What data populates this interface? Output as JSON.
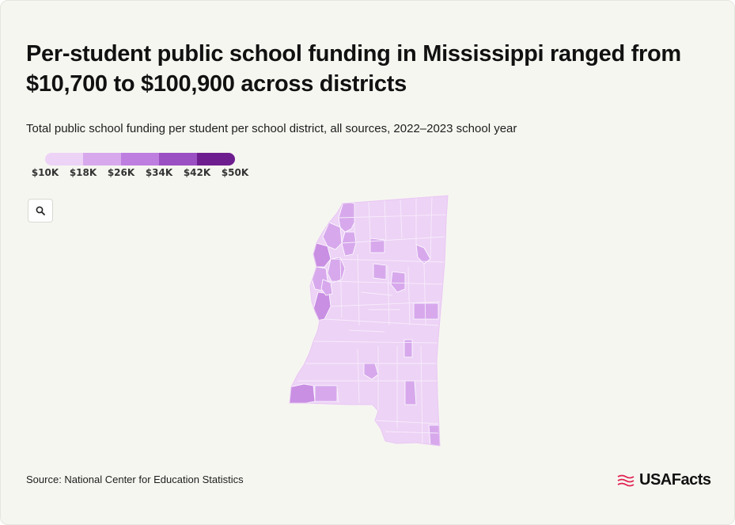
{
  "header": {
    "title": "Per-student public school funding in Mississippi ranged from $10,700 to $100,900 across districts",
    "subtitle": "Total public school funding per student per school district, all sources, 2022–2023 school year"
  },
  "legend": {
    "labels": [
      "$10K",
      "$18K",
      "$26K",
      "$34K",
      "$42K",
      "$50K"
    ],
    "colors": [
      "#edd3f6",
      "#d7a9ec",
      "#bd7ee0",
      "#9a50c2",
      "#6e1d8f"
    ]
  },
  "map": {
    "state": "Mississippi",
    "region_fills": {
      "low": "#edd3f6",
      "mid": "#d7a9ec",
      "high": "#c98fe3"
    },
    "zoom_icon": "search-icon"
  },
  "footer": {
    "source": "Source: National Center for Education Statistics",
    "brand": "USAFacts",
    "brand_icon": "usafacts-flag-icon",
    "brand_color": "#e0214f"
  }
}
